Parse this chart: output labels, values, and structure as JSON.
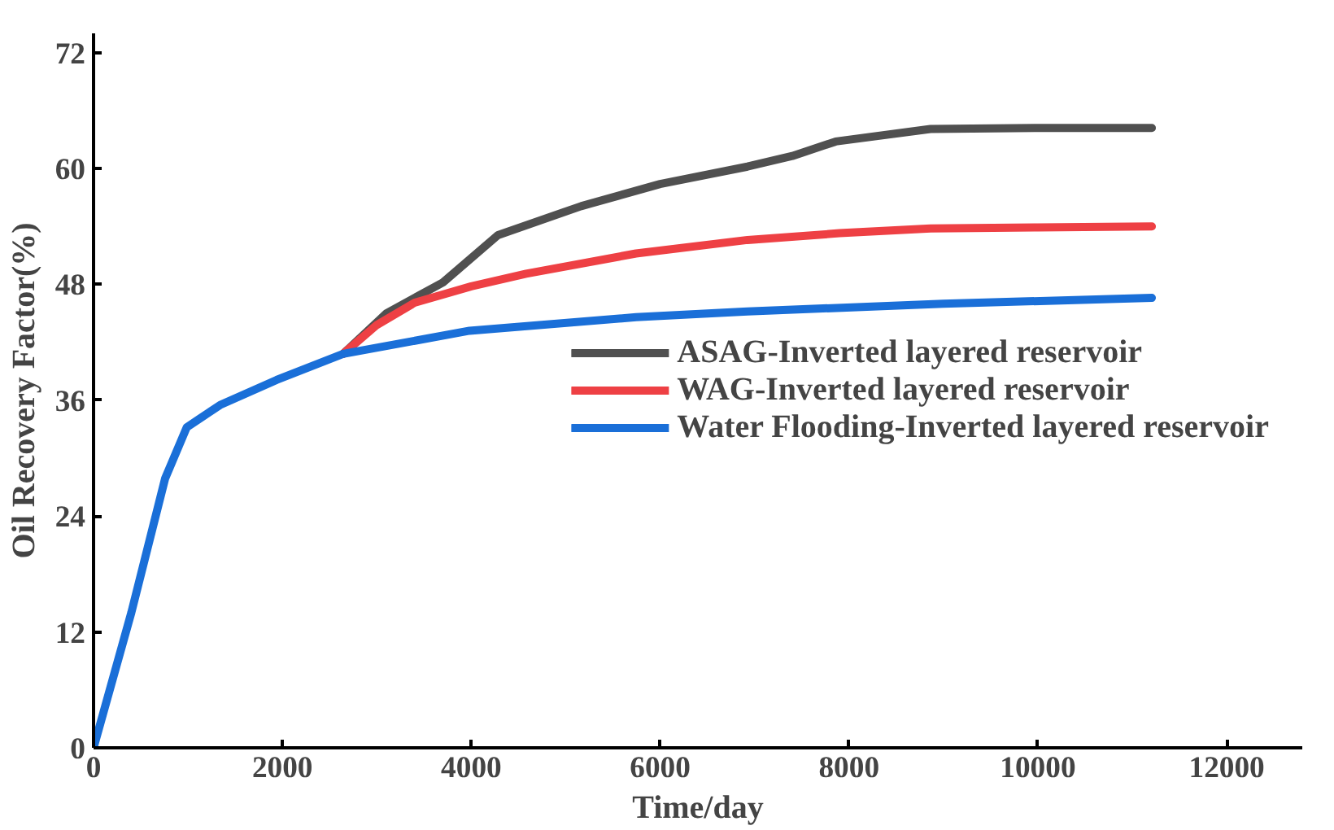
{
  "chart_data": {
    "type": "line",
    "xlabel": "Time/day",
    "ylabel": "Oil Recovery Factor(%)",
    "xlim": [
      0,
      12800
    ],
    "ylim": [
      0,
      74
    ],
    "xticks": [
      0,
      2000,
      4000,
      6000,
      8000,
      10000,
      12000
    ],
    "yticks": [
      0,
      12,
      24,
      36,
      48,
      60,
      72
    ],
    "grid": false,
    "legend": "center right",
    "marker": "none",
    "line_style": "solid",
    "series": [
      {
        "name": "ASAG-Inverted layered reservoir",
        "color": "#505050",
        "x": [
          2643,
          3101,
          3700,
          4282,
          5163,
          6000,
          6925,
          7400,
          7859,
          8863,
          10000,
          11207
        ],
        "values": [
          40.8,
          45.0,
          48.2,
          53.1,
          56.1,
          58.4,
          60.2,
          61.3,
          62.8,
          64.1,
          64.2,
          64.2
        ]
      },
      {
        "name": "WAG-Inverted layered reservoir",
        "color": "#ee4044",
        "x": [
          2643,
          3000,
          3400,
          4000,
          4581,
          5745,
          6925,
          7900,
          8863,
          10000,
          11207
        ],
        "values": [
          40.8,
          43.8,
          46.1,
          47.8,
          49.1,
          51.2,
          52.6,
          53.3,
          53.8,
          53.9,
          54.0
        ]
      },
      {
        "name": "Water Flooding-Inverted layered reservoir",
        "color": "#1a6fd8",
        "x": [
          0,
          400,
          758,
          987,
          1339,
          1938,
          2643,
          3982,
          5745,
          6925,
          9000,
          11207
        ],
        "values": [
          0,
          14,
          27.9,
          33.2,
          35.5,
          38.1,
          40.8,
          43.2,
          44.6,
          45.2,
          46.0,
          46.6
        ]
      }
    ]
  }
}
